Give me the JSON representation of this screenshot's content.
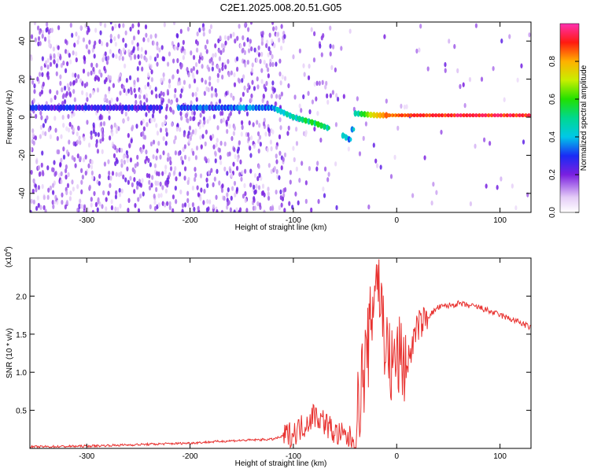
{
  "chart_data": [
    {
      "type": "heatmap",
      "title": "C2E1.2025.008.20.51.G05",
      "xlabel": "Height of straight line (km)",
      "ylabel": "Frequency (Hz)",
      "xlim": [
        -355,
        130
      ],
      "ylim": [
        -50,
        50
      ],
      "xticks": [
        -300,
        -200,
        -100,
        0,
        100
      ],
      "xtick_labels": [
        "-300",
        "-200",
        "-100",
        "0",
        "100"
      ],
      "yticks": [
        -40,
        -20,
        0,
        20,
        40
      ],
      "ytick_labels": [
        "-40",
        "-20",
        "0",
        "20",
        "40"
      ],
      "colorbar": {
        "label": "Normalized spectral amplitude",
        "range": [
          0,
          1
        ],
        "ticks": [
          0.0,
          0.2,
          0.4,
          0.6,
          0.8
        ],
        "tick_labels": [
          "0.0",
          "0.2",
          "0.4",
          "0.6",
          "0.8"
        ],
        "colormap": "white-purple-blue-cyan-green-yellow-red-magenta"
      },
      "trace": [
        {
          "x": -355,
          "freq": 5,
          "amp": 0.3
        },
        {
          "x": -230,
          "freq": 5,
          "amp": 0.3
        },
        {
          "x": -210,
          "freq": 5,
          "amp": 0.35
        },
        {
          "x": -120,
          "freq": 5,
          "amp": 0.4
        },
        {
          "x": -100,
          "freq": 0,
          "amp": 0.5
        },
        {
          "x": -80,
          "freq": -3,
          "amp": 0.6
        },
        {
          "x": -60,
          "freq": -7,
          "amp": 0.5
        },
        {
          "x": -45,
          "freq": -12,
          "amp": 0.4
        },
        {
          "x": -40,
          "freq": 2,
          "amp": 0.5
        },
        {
          "x": -20,
          "freq": 1,
          "amp": 0.8
        },
        {
          "x": 0,
          "freq": 1,
          "amp": 0.9
        },
        {
          "x": 50,
          "freq": 1,
          "amp": 0.95
        },
        {
          "x": 130,
          "freq": 1,
          "amp": 0.95
        }
      ]
    },
    {
      "type": "line",
      "xlabel": "Height of straight line (km)",
      "ylabel": "SNR (10 * v/v)",
      "y_multiplier": "(x10",
      "y_multiplier_exp": "4",
      "xlim": [
        -355,
        130
      ],
      "ylim": [
        0,
        2.5
      ],
      "xticks": [
        -300,
        -200,
        -100,
        0,
        100
      ],
      "xtick_labels": [
        "-300",
        "-200",
        "-100",
        "0",
        "100"
      ],
      "yticks": [
        0.5,
        1.0,
        1.5,
        2.0
      ],
      "ytick_labels": [
        "0.5",
        "1.0",
        "1.5",
        "2.0"
      ],
      "series": [
        {
          "color": "#e8312f",
          "x": [
            -355,
            -300,
            -250,
            -200,
            -160,
            -120,
            -100,
            -90,
            -80,
            -70,
            -60,
            -50,
            -40,
            -35,
            -30,
            -25,
            -20,
            -15,
            -10,
            -5,
            0,
            10,
            20,
            40,
            60,
            80,
            100,
            120,
            130
          ],
          "y": [
            0.02,
            0.03,
            0.05,
            0.07,
            0.1,
            0.12,
            0.2,
            0.3,
            0.45,
            0.35,
            0.2,
            0.15,
            0.1,
            0.8,
            1.1,
            1.6,
            2.4,
            1.9,
            1.3,
            1.05,
            1.2,
            1.1,
            1.6,
            1.85,
            1.9,
            1.85,
            1.75,
            1.65,
            1.58
          ]
        }
      ]
    }
  ],
  "colors": {
    "frame": "#000000",
    "line": "#e8312f"
  }
}
